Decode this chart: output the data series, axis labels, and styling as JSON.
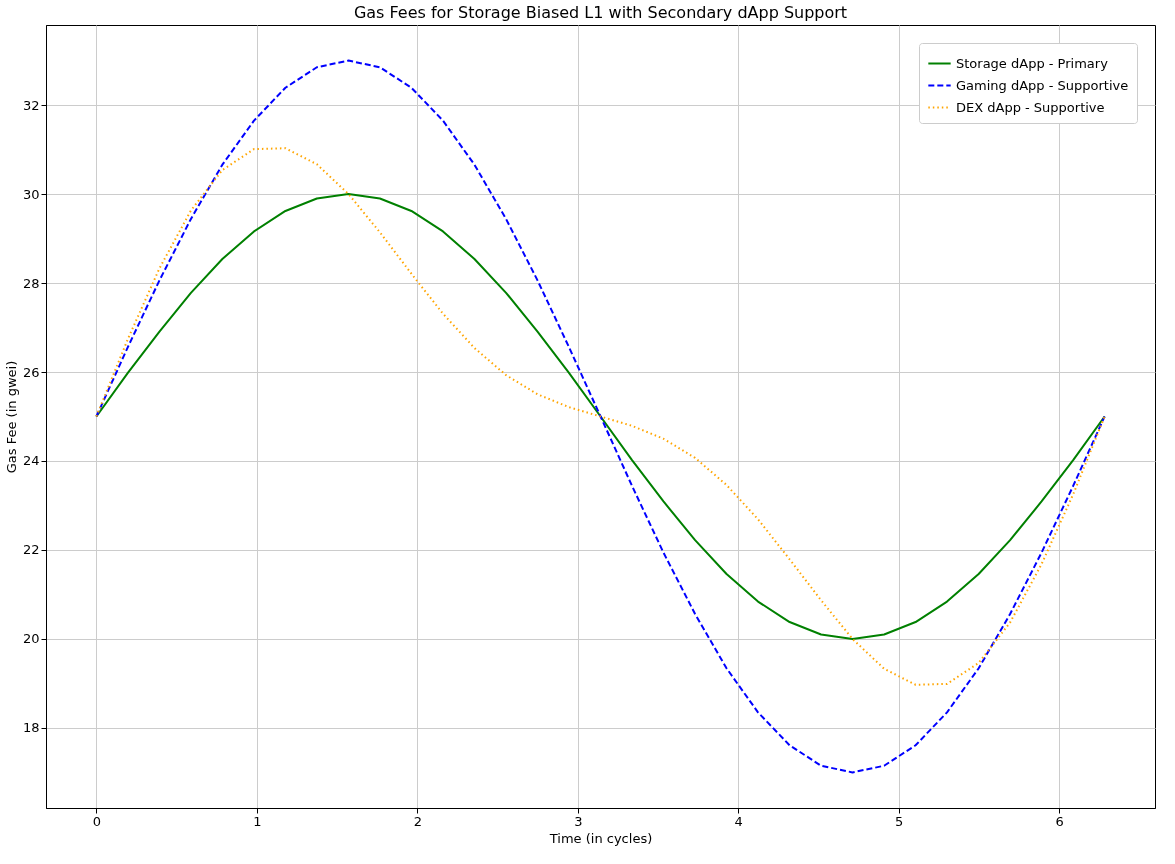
{
  "chart_data": {
    "type": "line",
    "title": "Gas Fees for Storage Biased L1 with Secondary dApp Support",
    "xlabel": "Time (in cycles)",
    "ylabel": "Gas Fee (in gwei)",
    "x": [
      0,
      0.196,
      0.393,
      0.589,
      0.785,
      0.982,
      1.178,
      1.374,
      1.571,
      1.767,
      1.963,
      2.16,
      2.356,
      2.553,
      2.749,
      2.945,
      3.142,
      3.338,
      3.534,
      3.731,
      3.927,
      4.123,
      4.32,
      4.516,
      4.712,
      4.909,
      5.105,
      5.301,
      5.498,
      5.694,
      5.89,
      6.087,
      6.283
    ],
    "series": [
      {
        "name": "Storage dApp - Primary",
        "color": "#008000",
        "line_style": "solid",
        "values": [
          25,
          25.98,
          26.91,
          27.78,
          28.54,
          29.16,
          29.62,
          29.9,
          30,
          29.9,
          29.62,
          29.16,
          28.54,
          27.78,
          26.91,
          25.98,
          25,
          24.02,
          23.09,
          22.22,
          21.46,
          20.84,
          20.38,
          20.1,
          20,
          20.1,
          20.38,
          20.84,
          21.46,
          22.22,
          23.09,
          24.02,
          25
        ]
      },
      {
        "name": "Gaming dApp - Supportive",
        "color": "#0000ff",
        "line_style": "dashed",
        "values": [
          25,
          26.56,
          28.06,
          29.44,
          30.66,
          31.65,
          32.39,
          32.85,
          33,
          32.85,
          32.39,
          31.65,
          30.66,
          29.44,
          28.06,
          26.56,
          25,
          23.44,
          21.94,
          20.56,
          19.34,
          18.35,
          17.61,
          17.15,
          17,
          17.15,
          17.61,
          18.35,
          19.34,
          20.56,
          21.94,
          23.44,
          25
        ]
      },
      {
        "name": "DEX dApp - Supportive",
        "color": "#ffa500",
        "line_style": "dotted",
        "values": [
          25,
          26.74,
          28.33,
          29.63,
          30.54,
          31.01,
          31.03,
          30.67,
          30,
          29.14,
          28.21,
          27.31,
          26.54,
          25.93,
          25.5,
          25.21,
          25,
          24.79,
          24.5,
          24.07,
          23.46,
          22.69,
          21.79,
          20.87,
          20,
          19.33,
          18.97,
          18.99,
          19.46,
          20.37,
          21.68,
          23.25,
          25
        ]
      }
    ],
    "xlim": [
      -0.314,
      6.597
    ],
    "ylim": [
      16.2,
      33.8
    ],
    "xticks": [
      0,
      1,
      2,
      3,
      4,
      5,
      6
    ],
    "yticks": [
      18,
      20,
      22,
      24,
      26,
      28,
      30,
      32
    ],
    "grid": true,
    "legend": "top right"
  }
}
